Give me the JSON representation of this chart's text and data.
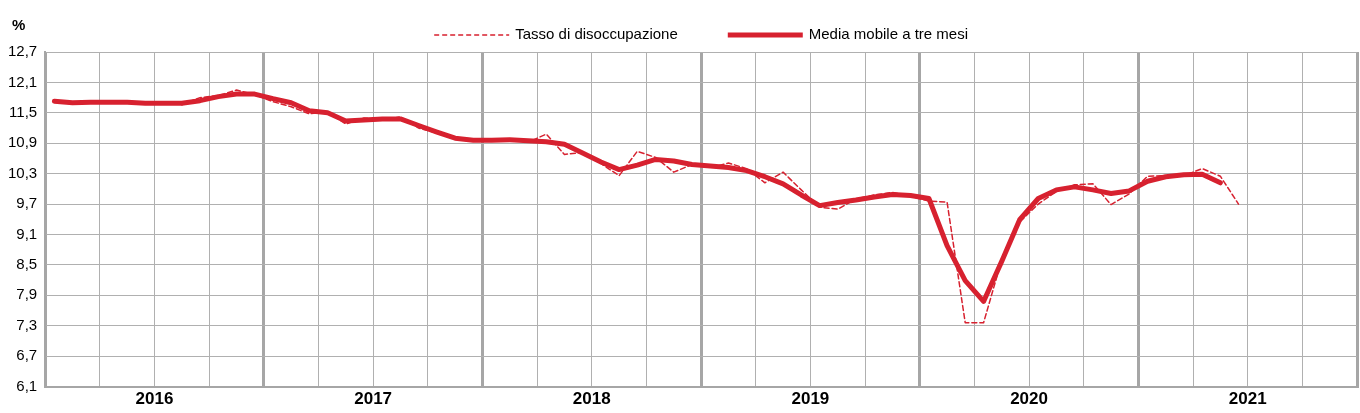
{
  "chart_data": {
    "type": "line",
    "ylabel": "%",
    "legend": "top",
    "grid": true,
    "marker": "none",
    "xlim": [
      2016,
      2022
    ],
    "xticks": [
      {
        "value": 2016,
        "label": null
      },
      {
        "value": 2016.25,
        "label": null
      },
      {
        "value": 2016.5,
        "label": "2016"
      },
      {
        "value": 2016.75,
        "label": null
      },
      {
        "value": 2017,
        "label": null
      },
      {
        "value": 2017.25,
        "label": null
      },
      {
        "value": 2017.5,
        "label": "2017"
      },
      {
        "value": 2017.75,
        "label": null
      },
      {
        "value": 2018,
        "label": null
      },
      {
        "value": 2018.25,
        "label": null
      },
      {
        "value": 2018.5,
        "label": "2018"
      },
      {
        "value": 2018.75,
        "label": null
      },
      {
        "value": 2019,
        "label": null
      },
      {
        "value": 2019.25,
        "label": null
      },
      {
        "value": 2019.5,
        "label": "2019"
      },
      {
        "value": 2019.75,
        "label": null
      },
      {
        "value": 2020,
        "label": null
      },
      {
        "value": 2020.25,
        "label": null
      },
      {
        "value": 2020.5,
        "label": "2020"
      },
      {
        "value": 2020.75,
        "label": null
      },
      {
        "value": 2021,
        "label": null
      },
      {
        "value": 2021.25,
        "label": null
      },
      {
        "value": 2021.5,
        "label": "2021"
      },
      {
        "value": 2021.75,
        "label": null
      },
      {
        "value": 2022,
        "label": null
      }
    ],
    "ylim": [
      6.1,
      12.7
    ],
    "yticks": [
      {
        "value": 6.1,
        "label": "6,1"
      },
      {
        "value": 6.7,
        "label": "6,7"
      },
      {
        "value": 7.3,
        "label": "7,3"
      },
      {
        "value": 7.9,
        "label": "7,9"
      },
      {
        "value": 8.5,
        "label": "8,5"
      },
      {
        "value": 9.1,
        "label": "9,1"
      },
      {
        "value": 9.7,
        "label": "9,7"
      },
      {
        "value": 10.3,
        "label": "10,3"
      },
      {
        "value": 10.9,
        "label": "10,9"
      },
      {
        "value": 11.5,
        "label": "11,5"
      },
      {
        "value": 12.1,
        "label": "12,1"
      },
      {
        "value": 12.7,
        "label": "12,7"
      }
    ],
    "x": [
      2016.042,
      2016.125,
      2016.208,
      2016.292,
      2016.375,
      2016.458,
      2016.542,
      2016.625,
      2016.708,
      2016.792,
      2016.875,
      2016.958,
      2017.042,
      2017.125,
      2017.208,
      2017.292,
      2017.375,
      2017.458,
      2017.542,
      2017.625,
      2017.708,
      2017.792,
      2017.875,
      2017.958,
      2018.042,
      2018.125,
      2018.208,
      2018.292,
      2018.375,
      2018.458,
      2018.542,
      2018.625,
      2018.708,
      2018.792,
      2018.875,
      2018.958,
      2019.042,
      2019.125,
      2019.208,
      2019.292,
      2019.375,
      2019.458,
      2019.542,
      2019.625,
      2019.708,
      2019.792,
      2019.875,
      2019.958,
      2020.042,
      2020.125,
      2020.208,
      2020.292,
      2020.375,
      2020.458,
      2020.542,
      2020.625,
      2020.708,
      2020.792,
      2020.875,
      2020.958,
      2021.042,
      2021.125,
      2021.208,
      2021.292,
      2021.375,
      2021.458
    ],
    "series": [
      {
        "name": "Tasso di disoccupazione",
        "color": "#d7212f",
        "line_style": "dashed",
        "values": [
          11.72,
          11.68,
          11.74,
          11.7,
          11.72,
          11.68,
          11.7,
          11.66,
          11.8,
          11.84,
          11.95,
          11.86,
          11.72,
          11.62,
          11.48,
          11.52,
          11.28,
          11.4,
          11.36,
          11.42,
          11.2,
          11.1,
          11.0,
          10.95,
          10.95,
          10.98,
          10.92,
          11.08,
          10.68,
          10.72,
          10.5,
          10.26,
          10.74,
          10.62,
          10.33,
          10.48,
          10.42,
          10.51,
          10.4,
          10.12,
          10.33,
          9.98,
          9.64,
          9.6,
          9.8,
          9.88,
          9.93,
          9.85,
          9.76,
          9.74,
          7.36,
          7.36,
          8.6,
          9.35,
          9.7,
          9.95,
          10.08,
          10.1,
          9.69,
          9.9,
          10.25,
          10.26,
          10.26,
          10.4,
          10.25,
          9.7
        ]
      },
      {
        "name": "Media mobile a tre mesi",
        "color": "#d7212f",
        "line_style": "solid",
        "values": [
          11.73,
          11.7,
          11.71,
          11.71,
          11.71,
          11.69,
          11.69,
          11.69,
          11.74,
          11.82,
          11.87,
          11.87,
          11.78,
          11.7,
          11.54,
          11.5,
          11.34,
          11.36,
          11.38,
          11.38,
          11.25,
          11.12,
          11.0,
          10.96,
          10.96,
          10.97,
          10.95,
          10.93,
          10.88,
          10.71,
          10.53,
          10.38,
          10.47,
          10.58,
          10.55,
          10.48,
          10.45,
          10.42,
          10.36,
          10.24,
          10.1,
          9.88,
          9.67,
          9.73,
          9.78,
          9.84,
          9.89,
          9.87,
          9.81,
          8.88,
          8.19,
          7.78,
          8.57,
          9.4,
          9.81,
          9.98,
          10.04,
          9.98,
          9.91,
          9.96,
          10.15,
          10.24,
          10.28,
          10.29,
          10.12,
          null
        ]
      }
    ]
  }
}
